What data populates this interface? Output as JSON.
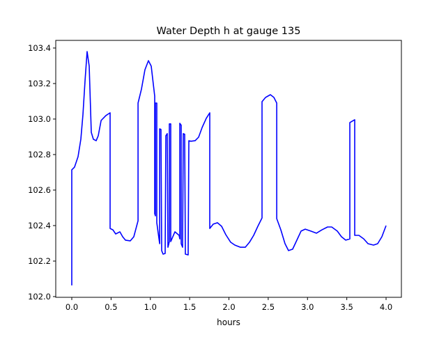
{
  "chart_data": {
    "type": "line",
    "title": "Water Depth h at gauge 135",
    "xlabel": "hours",
    "ylabel": "",
    "xlim": [
      -0.204,
      4.195
    ],
    "ylim": [
      101.996,
      103.443
    ],
    "xticks": [
      0.0,
      0.5,
      1.0,
      1.5,
      2.0,
      2.5,
      3.0,
      3.5,
      4.0
    ],
    "xtick_labels": [
      "0.0",
      "0.5",
      "1.0",
      "1.5",
      "2.0",
      "2.5",
      "3.0",
      "3.5",
      "4.0"
    ],
    "yticks": [
      102.0,
      102.2,
      102.4,
      102.6,
      102.8,
      103.0,
      103.2,
      103.4
    ],
    "ytick_labels": [
      "102.0",
      "102.2",
      "102.4",
      "102.6",
      "102.8",
      "103.0",
      "103.2",
      "103.4"
    ],
    "grid": false,
    "series": [
      {
        "name": "h",
        "color": "#0000ff",
        "x": [
          0.0,
          0.0,
          0.035,
          0.08,
          0.115,
          0.142,
          0.169,
          0.195,
          0.222,
          0.248,
          0.275,
          0.31,
          0.337,
          0.373,
          0.435,
          0.488,
          0.488,
          0.523,
          0.559,
          0.612,
          0.647,
          0.683,
          0.745,
          0.789,
          0.843,
          0.843,
          0.887,
          0.931,
          0.976,
          1.011,
          1.055,
          1.055,
          1.064,
          1.064,
          1.082,
          1.082,
          1.118,
          1.118,
          1.135,
          1.144,
          1.162,
          1.188,
          1.197,
          1.215,
          1.224,
          1.242,
          1.242,
          1.259,
          1.259,
          1.313,
          1.366,
          1.375,
          1.375,
          1.392,
          1.392,
          1.41,
          1.419,
          1.437,
          1.446,
          1.481,
          1.49,
          1.517,
          1.57,
          1.614,
          1.659,
          1.712,
          1.756,
          1.756,
          1.8,
          1.854,
          1.907,
          1.96,
          2.022,
          2.075,
          2.146,
          2.208,
          2.262,
          2.315,
          2.368,
          2.421,
          2.421,
          2.466,
          2.528,
          2.572,
          2.608,
          2.608,
          2.661,
          2.714,
          2.758,
          2.811,
          2.865,
          2.918,
          2.971,
          3.042,
          3.113,
          3.184,
          3.255,
          3.308,
          3.379,
          3.432,
          3.486,
          3.539,
          3.539,
          3.601,
          3.601,
          3.654,
          3.716,
          3.77,
          3.84,
          3.893,
          3.947,
          4.0
        ],
        "y": [
          102.063,
          102.714,
          102.729,
          102.788,
          102.886,
          103.024,
          103.22,
          103.38,
          103.298,
          102.925,
          102.886,
          102.878,
          102.906,
          102.992,
          103.02,
          103.035,
          102.384,
          102.376,
          102.353,
          102.365,
          102.337,
          102.318,
          102.314,
          102.337,
          102.427,
          103.09,
          103.169,
          103.278,
          103.329,
          103.298,
          103.129,
          102.467,
          102.455,
          103.09,
          103.09,
          102.416,
          102.298,
          102.945,
          102.941,
          102.259,
          102.239,
          102.243,
          102.906,
          102.918,
          102.278,
          102.31,
          102.973,
          102.973,
          102.31,
          102.365,
          102.345,
          102.325,
          102.976,
          102.965,
          102.298,
          102.278,
          102.918,
          102.914,
          102.239,
          102.235,
          102.878,
          102.875,
          102.878,
          102.898,
          102.953,
          103.004,
          103.035,
          102.384,
          102.408,
          102.416,
          102.396,
          102.349,
          102.306,
          102.29,
          102.278,
          102.278,
          102.306,
          102.345,
          102.396,
          102.443,
          103.098,
          103.122,
          103.137,
          103.122,
          103.09,
          102.439,
          102.376,
          102.298,
          102.259,
          102.267,
          102.318,
          102.369,
          102.38,
          102.369,
          102.357,
          102.376,
          102.392,
          102.392,
          102.369,
          102.337,
          102.318,
          102.325,
          102.98,
          102.996,
          102.345,
          102.345,
          102.325,
          102.298,
          102.29,
          102.298,
          102.337,
          102.4
        ]
      }
    ]
  }
}
